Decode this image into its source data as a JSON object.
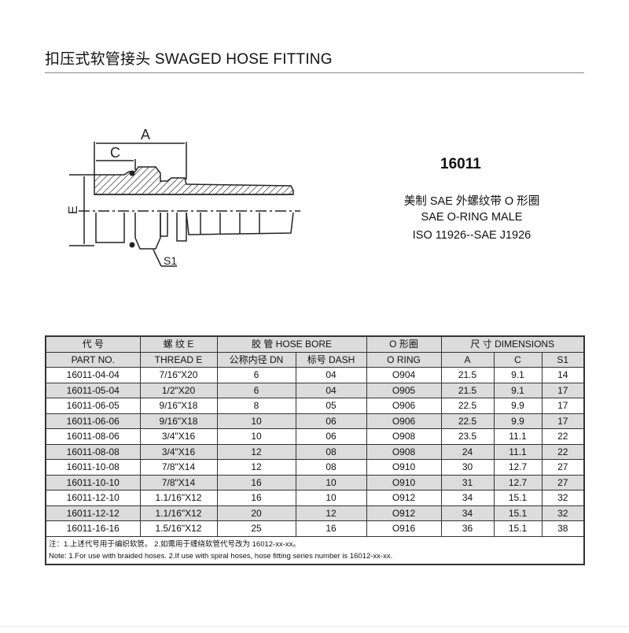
{
  "title": "扣压式软管接头 SWAGED HOSE FITTING",
  "model": "16011",
  "desc": [
    "美制 SAE 外螺纹带 O 形圈",
    "SAE O-RING MALE",
    "ISO 11926--SAE J1926"
  ],
  "drawing_labels": {
    "a": "A",
    "c": "C",
    "e": "E",
    "s1": "S1"
  },
  "table": {
    "header1": [
      "代 号",
      "螺 纹 E",
      "胶 管 HOSE BORE",
      "O 形圈",
      "尺 寸 DIMENSIONS"
    ],
    "header2": [
      "PART NO.",
      "THREAD E",
      "公称内径 DN",
      "标号 DASH",
      "O RING",
      "A",
      "C",
      "S1"
    ],
    "rows": [
      [
        "16011-04-04",
        "7/16\"X20",
        "6",
        "04",
        "O904",
        "21.5",
        "9.1",
        "14"
      ],
      [
        "16011-05-04",
        "1/2\"X20",
        "6",
        "04",
        "O905",
        "21.5",
        "9.1",
        "17"
      ],
      [
        "16011-06-05",
        "9/16\"X18",
        "8",
        "05",
        "O906",
        "22.5",
        "9.9",
        "17"
      ],
      [
        "16011-06-06",
        "9/16\"X18",
        "10",
        "06",
        "O906",
        "22.5",
        "9.9",
        "17"
      ],
      [
        "16011-08-06",
        "3/4\"X16",
        "10",
        "06",
        "O908",
        "23.5",
        "11.1",
        "22"
      ],
      [
        "16011-08-08",
        "3/4\"X16",
        "12",
        "08",
        "O908",
        "24",
        "11.1",
        "22"
      ],
      [
        "16011-10-08",
        "7/8\"X14",
        "12",
        "08",
        "O910",
        "30",
        "12.7",
        "27"
      ],
      [
        "16011-10-10",
        "7/8\"X14",
        "16",
        "10",
        "O910",
        "31",
        "12.7",
        "27"
      ],
      [
        "16011-12-10",
        "1.1/16\"X12",
        "16",
        "10",
        "O912",
        "34",
        "15.1",
        "32"
      ],
      [
        "16011-12-12",
        "1.1/16\"X12",
        "20",
        "12",
        "O912",
        "34",
        "15.1",
        "32"
      ],
      [
        "16011-16-16",
        "1.5/16\"X12",
        "25",
        "16",
        "O916",
        "36",
        "15.1",
        "38"
      ]
    ],
    "note_cn": "注：1.上述代号用于编织软管。        2.如需用于缠绕软管代号改为 16012-xx-xx。",
    "note_en": "Note: 1.For use with braided hoses.    2.If use with spiral hoses, hose fitting series number is 16012-xx-xx."
  }
}
